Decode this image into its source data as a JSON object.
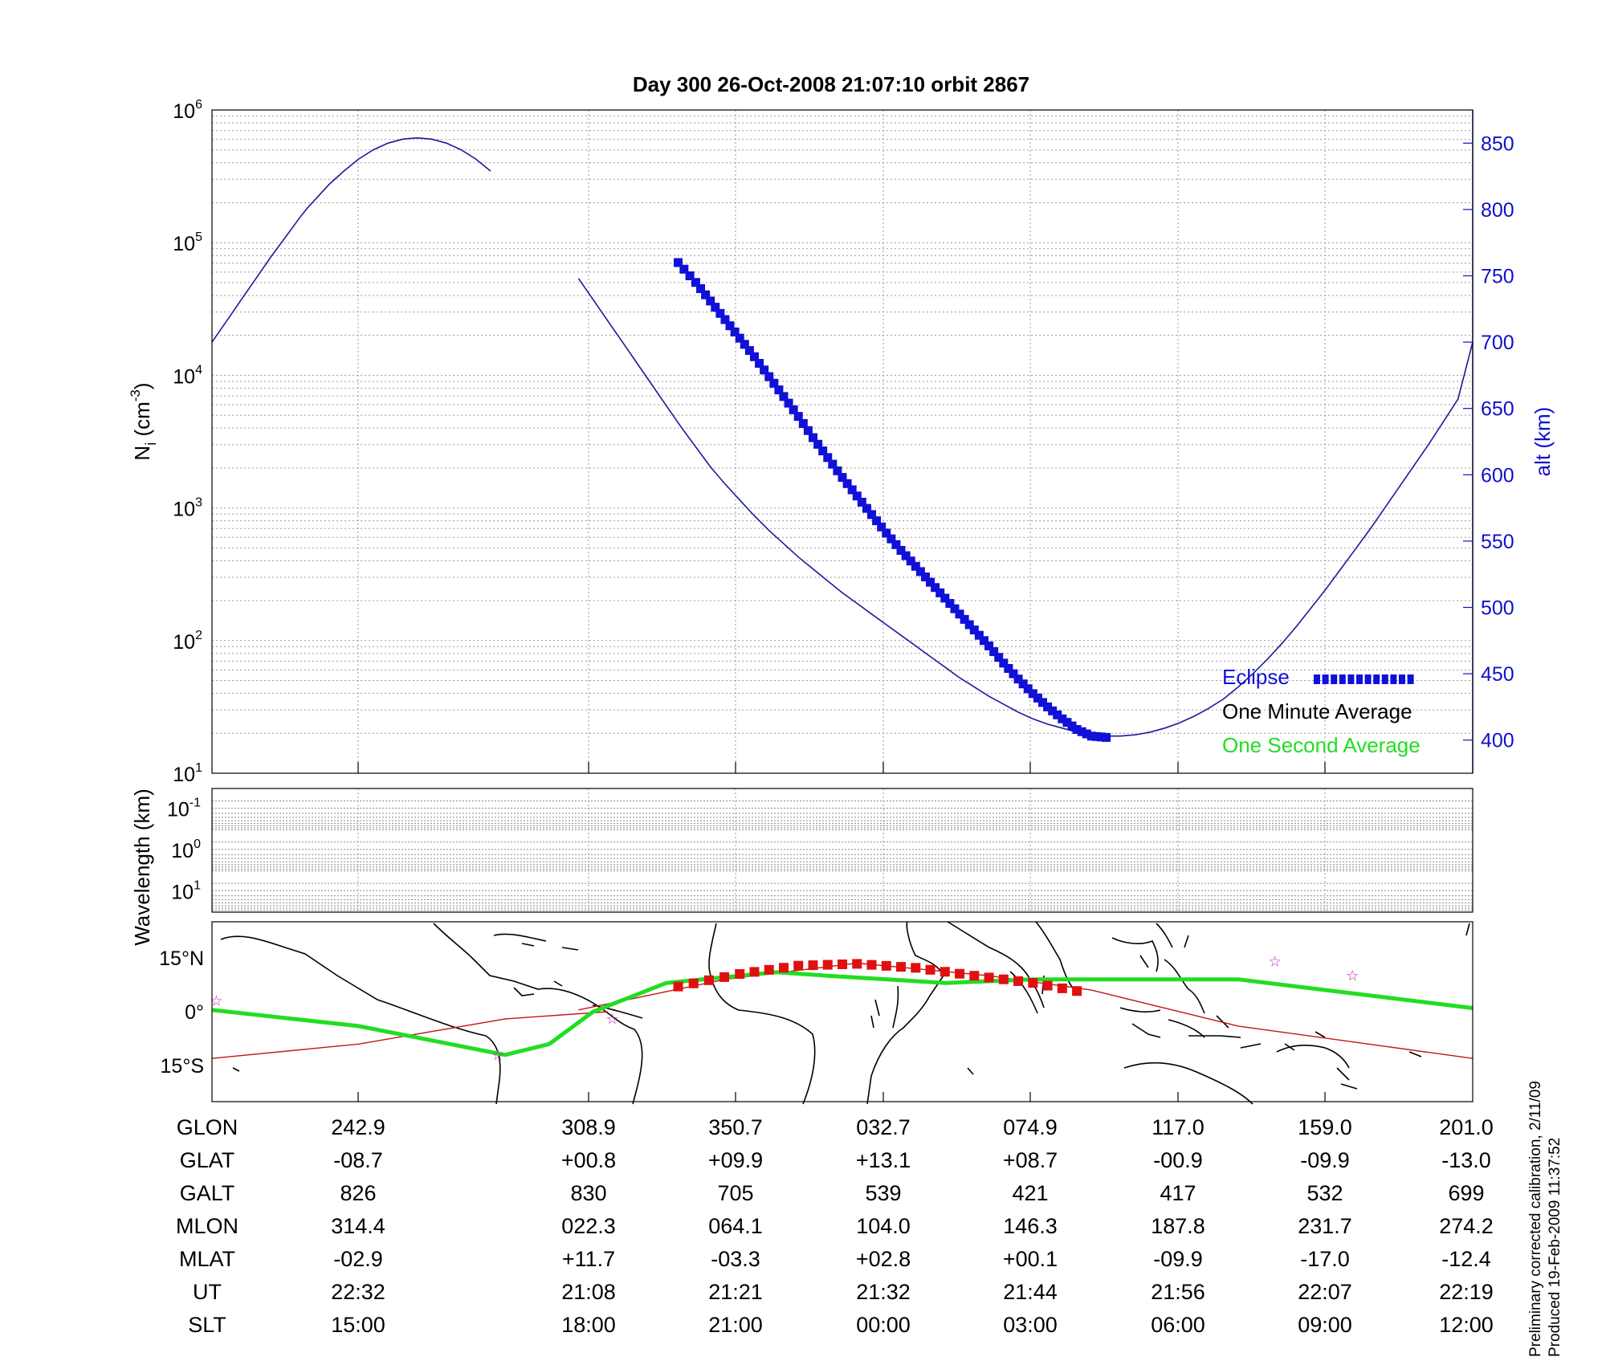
{
  "title": "Day 300  26-Oct-2008 21:07:10   orbit 2867",
  "chart_data": [
    {
      "type": "line",
      "panel": "density",
      "ylabel": "N_i (cm^-3)",
      "yscale": "log",
      "ylim": [
        10,
        1000000
      ],
      "y_ticks": [
        {
          "base": "10",
          "exp": "1"
        },
        {
          "base": "10",
          "exp": "2"
        },
        {
          "base": "10",
          "exp": "3"
        },
        {
          "base": "10",
          "exp": "4"
        },
        {
          "base": "10",
          "exp": "5"
        },
        {
          "base": "10",
          "exp": "6"
        }
      ],
      "y2label": "alt (km)",
      "y2lim": [
        375,
        875
      ],
      "y2_ticks": [
        400,
        450,
        500,
        550,
        600,
        650,
        700,
        750,
        800,
        850
      ],
      "grid": true,
      "legend_position": "bottom-right",
      "legend": [
        {
          "label": "Eclipse",
          "color": "#1010d8"
        },
        {
          "label": "One Minute Average",
          "color": "#000000"
        },
        {
          "label": "One Second Average",
          "color": "#22dd22"
        }
      ],
      "series": [
        {
          "name": "alt (km)",
          "color": "#1a1a9a",
          "x": [
            0,
            10,
            20,
            30,
            40,
            50,
            60,
            65,
            70,
            80,
            90,
            100,
            110,
            120,
            130,
            140,
            150,
            160,
            170,
            180,
            190,
            200,
            210,
            220,
            230,
            240,
            250,
            260,
            270,
            280,
            290,
            300,
            310,
            320,
            330,
            340,
            350,
            360,
            370,
            380,
            390,
            400,
            410,
            420,
            430,
            440,
            450,
            460,
            470,
            480,
            490,
            500,
            510,
            520,
            530,
            540,
            550,
            560,
            570,
            580,
            590,
            600,
            610,
            620,
            630,
            640,
            650,
            660,
            670,
            680,
            690,
            700,
            710,
            720,
            730,
            740,
            750,
            760,
            770,
            780,
            790,
            800,
            810,
            820,
            830,
            840,
            850,
            860
          ],
          "y": [
            700,
            716,
            732,
            748,
            764,
            779,
            794,
            801,
            807,
            819,
            829,
            838,
            845,
            850,
            853,
            854,
            853,
            850,
            845,
            838,
            829,
            819,
            807,
            794,
            779,
            764,
            748,
            732,
            716,
            700,
            684,
            668,
            652,
            636,
            621,
            606,
            593,
            581,
            569,
            558,
            548,
            538,
            529,
            520,
            511,
            503,
            495,
            487,
            479,
            471,
            463,
            455,
            447,
            440,
            433,
            427,
            421,
            416,
            412,
            409,
            406,
            404,
            403,
            403,
            404,
            406,
            409,
            413,
            418,
            424,
            431,
            440,
            450,
            461,
            473,
            486,
            500,
            514,
            529,
            544,
            559,
            575,
            591,
            607,
            623,
            640,
            657,
            700
          ],
          "gaps_x": [
            [
              190,
              250
            ]
          ]
        },
        {
          "name": "Eclipse",
          "color": "#1010d8",
          "x": [
            318,
            330,
            340,
            350,
            360,
            370,
            380,
            390,
            400,
            410,
            420,
            430,
            440,
            450,
            460,
            470,
            480,
            490,
            500,
            510,
            520,
            530,
            540,
            550,
            560,
            570,
            580,
            590,
            600,
            610
          ],
          "y": [
            760,
            745,
            731,
            717,
            703,
            689,
            674,
            659,
            644,
            628,
            613,
            598,
            584,
            570,
            556,
            543,
            531,
            519,
            507,
            495,
            483,
            471,
            458,
            446,
            435,
            425,
            416,
            408,
            403,
            402
          ]
        }
      ],
      "x_range": [
        0,
        860
      ]
    },
    {
      "type": "heatmap",
      "panel": "spectrum",
      "ylabel": "Wavelength (km)",
      "y_ticks": [
        {
          "base": "10",
          "exp": "-1"
        },
        {
          "base": "10",
          "exp": "0"
        },
        {
          "base": "10",
          "exp": "1"
        }
      ],
      "grid": true,
      "values": []
    },
    {
      "type": "line",
      "panel": "map",
      "y_ticks": [
        "15°N",
        "0°",
        "15°S"
      ],
      "ylim": [
        -25,
        25
      ],
      "series": [
        {
          "name": "magnetic equator",
          "color": "#22dd22",
          "x": [
            0,
            100,
            200,
            230,
            260,
            310,
            385,
            420,
            500,
            560,
            620,
            700,
            760,
            860
          ],
          "y": [
            0.5,
            -4,
            -12,
            -9,
            0,
            8,
            11,
            10,
            8,
            9,
            9,
            9,
            6,
            1
          ]
        },
        {
          "name": "orbit track",
          "color": "#c01818",
          "segments": [
            {
              "x": [
                0,
                100,
                200,
                270
              ],
              "y": [
                -13,
                -9,
                -2,
                0
              ]
            },
            {
              "x": [
                250,
                350,
                440,
                530,
                600,
                700,
                860
              ],
              "y": [
                0.5,
                9,
                13.5,
                10,
                6,
                -4,
                -13
              ]
            }
          ]
        },
        {
          "name": "Eclipse",
          "color": "#e01010",
          "x": [
            318,
            360,
            400,
            440,
            480,
            520,
            560,
            600
          ],
          "y": [
            7,
            10.5,
            12.8,
            13.3,
            12.2,
            10,
            8,
            5
          ]
        }
      ],
      "stars": [
        {
          "x": 3,
          "y": 3
        },
        {
          "x": 195,
          "y": -12
        },
        {
          "x": 273,
          "y": -2
        },
        {
          "x": 725,
          "y": 14
        },
        {
          "x": 778,
          "y": 10
        }
      ]
    }
  ],
  "table": {
    "row_labels": [
      "GLON",
      "GLAT",
      "GALT",
      "MLON",
      "MLAT",
      "UT",
      "SLT"
    ],
    "columns": [
      [
        "242.9",
        "-08.7",
        "826",
        "314.4",
        "-02.9",
        "22:32",
        "15:00"
      ],
      [
        "308.9",
        "+00.8",
        "830",
        "022.3",
        "+11.7",
        "21:08",
        "18:00"
      ],
      [
        "350.7",
        "+09.9",
        "705",
        "064.1",
        "-03.3",
        "21:21",
        "21:00"
      ],
      [
        "032.7",
        "+13.1",
        "539",
        "104.0",
        "+02.8",
        "21:32",
        "00:00"
      ],
      [
        "074.9",
        "+08.7",
        "421",
        "146.3",
        "+00.1",
        "21:44",
        "03:00"
      ],
      [
        "117.0",
        "-00.9",
        "417",
        "187.8",
        "-09.9",
        "21:56",
        "06:00"
      ],
      [
        "159.0",
        "-09.9",
        "532",
        "231.7",
        "-17.0",
        "22:07",
        "09:00"
      ],
      [
        "201.0",
        "-13.0",
        "699",
        "274.2",
        "-12.4",
        "22:19",
        "12:00"
      ]
    ]
  },
  "footer": {
    "line1": "Preliminary corrected calibration, 2/11/09",
    "line2": "Produced 19-Feb-2009 11:37:52"
  }
}
